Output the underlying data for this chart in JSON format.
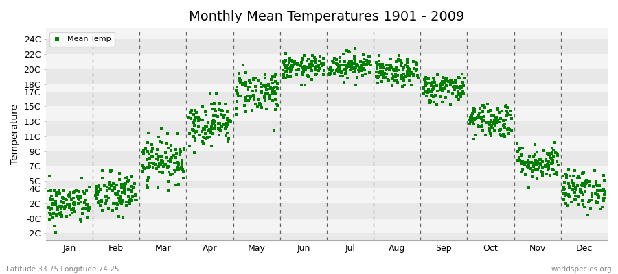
{
  "title": "Monthly Mean Temperatures 1901 - 2009",
  "ylabel": "Temperature",
  "xlabel_bottom_left": "Latitude 33.75 Longitude 74.25",
  "xlabel_bottom_right": "worldspecies.org",
  "legend_label": "Mean Temp",
  "marker_color": "#008000",
  "figure_bg_color": "#ffffff",
  "plot_bg_color": "#f0f0f0",
  "band_colors": [
    "#e8e8e8",
    "#f4f4f4"
  ],
  "ytick_labels": [
    "-2C",
    "-0C",
    "2C",
    "4C",
    "5C",
    "7C",
    "9C",
    "11C",
    "13C",
    "15C",
    "17C",
    "18C",
    "20C",
    "22C",
    "24C"
  ],
  "ytick_values": [
    -2,
    0,
    2,
    4,
    5,
    7,
    9,
    11,
    13,
    15,
    17,
    18,
    20,
    22,
    24
  ],
  "ylim": [
    -3.0,
    25.5
  ],
  "month_names": [
    "Jan",
    "Feb",
    "Mar",
    "Apr",
    "May",
    "Jun",
    "Jul",
    "Aug",
    "Sep",
    "Oct",
    "Nov",
    "Dec"
  ],
  "month_means": [
    1.8,
    3.2,
    7.8,
    12.8,
    17.0,
    20.2,
    20.5,
    19.5,
    17.5,
    13.2,
    7.5,
    3.8
  ],
  "month_stds": [
    1.4,
    1.5,
    1.5,
    1.5,
    1.5,
    0.8,
    0.9,
    0.9,
    1.0,
    1.2,
    1.2,
    1.3
  ],
  "n_points": 109,
  "seed": 42,
  "vline_color": "#666666",
  "title_fontsize": 14,
  "tick_fontsize": 9,
  "ylabel_fontsize": 10
}
